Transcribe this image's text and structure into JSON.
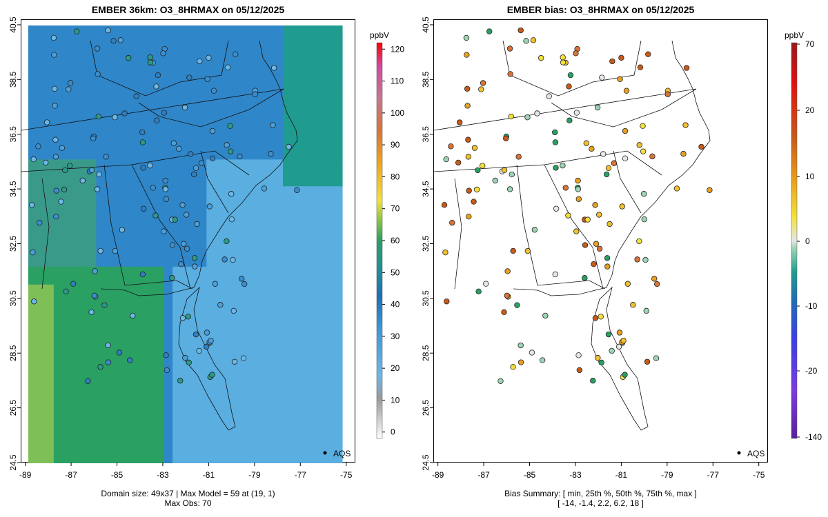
{
  "left_panel": {
    "title": "EMBER 36km: O3_8HRMAX on 05/12/2025",
    "legend_label": "AQS",
    "domain_summary": "Domain size: 49x37 | Max Model = 59 at (19, 1)",
    "max_obs": "Max Obs: 70",
    "colorbar_unit": "ppbV",
    "colorbar_ticks": [
      0,
      10,
      20,
      30,
      40,
      50,
      60,
      70,
      80,
      90,
      100,
      110,
      120
    ],
    "colorbar_range": [
      -2,
      122
    ]
  },
  "right_panel": {
    "title": "EMBER bias: O3_8HRMAX on 05/12/2025",
    "legend_label": "AQS",
    "bias_summary_label": "Bias Summary: [ min, 25th %, 50th %, 75th %, max ]",
    "bias_summary_values": "[ -14,   -1.4,   2.2,   6.2,   18 ]",
    "colorbar_unit": "ppbV",
    "colorbar_ticks": [
      70,
      20,
      10,
      0,
      -10,
      -20,
      -140
    ],
    "colorbar_tick_labels": [
      "70",
      "20",
      "10",
      "0",
      "-10",
      "-20",
      "-140"
    ]
  },
  "axes": {
    "lon_ticks": [
      -89,
      -87,
      -85,
      -83,
      -81,
      -79,
      -77,
      -75
    ],
    "lat_ticks": [
      40.5,
      38.5,
      36.5,
      34.5,
      32.5,
      30.5,
      28.5,
      26.5,
      24.5
    ],
    "lon_range": [
      -89.2,
      -74.6
    ],
    "lat_range": [
      24.5,
      40.7
    ]
  },
  "colors": {
    "ocean_light": "#5aaee0",
    "land_blue": "#2f86c8",
    "land_teal": "#1f9c8f",
    "land_green": "#2aa063",
    "marker_outline": "#222222"
  }
}
